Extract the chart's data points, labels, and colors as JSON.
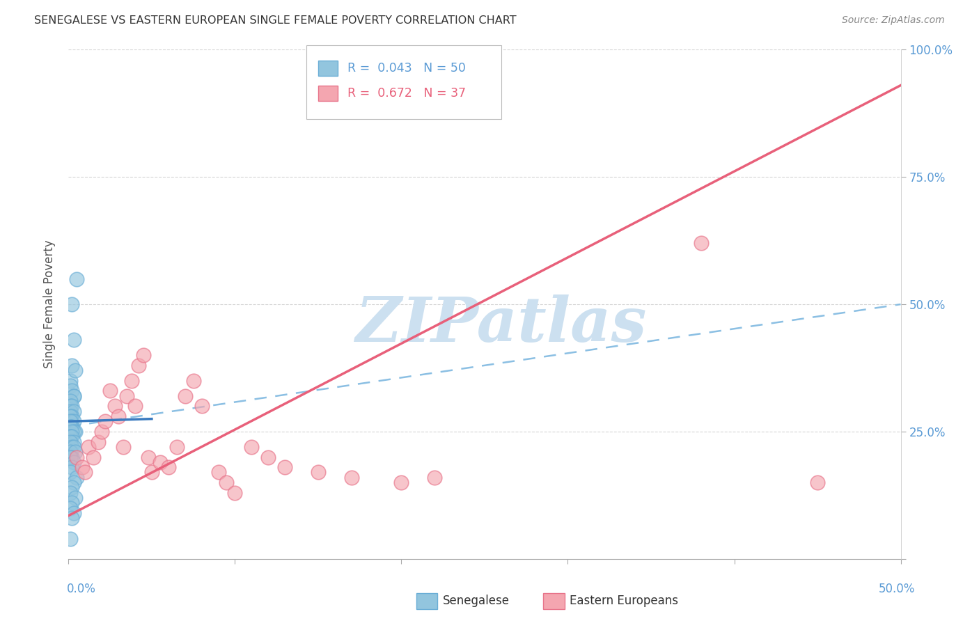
{
  "title": "SENEGALESE VS EASTERN EUROPEAN SINGLE FEMALE POVERTY CORRELATION CHART",
  "source": "Source: ZipAtlas.com",
  "ylabel": "Single Female Poverty",
  "xlim": [
    0,
    0.5
  ],
  "ylim": [
    0,
    1.0
  ],
  "yticks": [
    0.0,
    0.25,
    0.5,
    0.75,
    1.0
  ],
  "ytick_labels": [
    "",
    "25.0%",
    "50.0%",
    "75.0%",
    "100.0%"
  ],
  "xtick_left_label": "0.0%",
  "xtick_right_label": "50.0%",
  "grid_color": "#cccccc",
  "background_color": "#ffffff",
  "senegalese_color": "#92c5de",
  "senegalese_edge_color": "#6aaed6",
  "eastern_color": "#f4a6b0",
  "eastern_edge_color": "#e8748a",
  "senegalese_line_color": "#3a7abf",
  "eastern_line_color": "#e8607a",
  "dashed_line_color": "#7eb8e0",
  "senegalese_R": 0.043,
  "senegalese_N": 50,
  "eastern_R": 0.672,
  "eastern_N": 37,
  "watermark": "ZIPatlas",
  "watermark_color": "#cce0f0",
  "senegalese_x": [
    0.002,
    0.003,
    0.005,
    0.001,
    0.002,
    0.004,
    0.001,
    0.002,
    0.003,
    0.003,
    0.001,
    0.001,
    0.002,
    0.001,
    0.003,
    0.002,
    0.001,
    0.002,
    0.003,
    0.001,
    0.001,
    0.002,
    0.001,
    0.004,
    0.003,
    0.002,
    0.001,
    0.001,
    0.002,
    0.003,
    0.001,
    0.002,
    0.003,
    0.001,
    0.004,
    0.002,
    0.001,
    0.003,
    0.002,
    0.001,
    0.005,
    0.003,
    0.002,
    0.001,
    0.004,
    0.002,
    0.001,
    0.003,
    0.002,
    0.001
  ],
  "senegalese_y": [
    0.5,
    0.43,
    0.55,
    0.35,
    0.38,
    0.37,
    0.34,
    0.33,
    0.32,
    0.32,
    0.31,
    0.3,
    0.3,
    0.29,
    0.29,
    0.28,
    0.28,
    0.27,
    0.27,
    0.27,
    0.26,
    0.26,
    0.26,
    0.25,
    0.25,
    0.25,
    0.24,
    0.24,
    0.24,
    0.23,
    0.23,
    0.22,
    0.22,
    0.21,
    0.21,
    0.2,
    0.2,
    0.19,
    0.18,
    0.17,
    0.16,
    0.15,
    0.14,
    0.13,
    0.12,
    0.11,
    0.1,
    0.09,
    0.08,
    0.04
  ],
  "eastern_x": [
    0.005,
    0.008,
    0.01,
    0.012,
    0.015,
    0.018,
    0.02,
    0.022,
    0.025,
    0.028,
    0.03,
    0.033,
    0.035,
    0.038,
    0.04,
    0.042,
    0.045,
    0.048,
    0.05,
    0.055,
    0.06,
    0.065,
    0.07,
    0.075,
    0.08,
    0.09,
    0.095,
    0.1,
    0.11,
    0.12,
    0.13,
    0.15,
    0.17,
    0.2,
    0.22,
    0.38,
    0.45
  ],
  "eastern_y": [
    0.2,
    0.18,
    0.17,
    0.22,
    0.2,
    0.23,
    0.25,
    0.27,
    0.33,
    0.3,
    0.28,
    0.22,
    0.32,
    0.35,
    0.3,
    0.38,
    0.4,
    0.2,
    0.17,
    0.19,
    0.18,
    0.22,
    0.32,
    0.35,
    0.3,
    0.17,
    0.15,
    0.13,
    0.22,
    0.2,
    0.18,
    0.17,
    0.16,
    0.15,
    0.16,
    0.62,
    0.15
  ],
  "sen_line_x": [
    0.0,
    0.05
  ],
  "sen_line_y": [
    0.27,
    0.275
  ],
  "dashed_line_x": [
    0.0,
    0.5
  ],
  "dashed_line_y": [
    0.26,
    0.5
  ],
  "east_line_x": [
    0.0,
    0.5
  ],
  "east_line_y": [
    0.085,
    0.93
  ]
}
